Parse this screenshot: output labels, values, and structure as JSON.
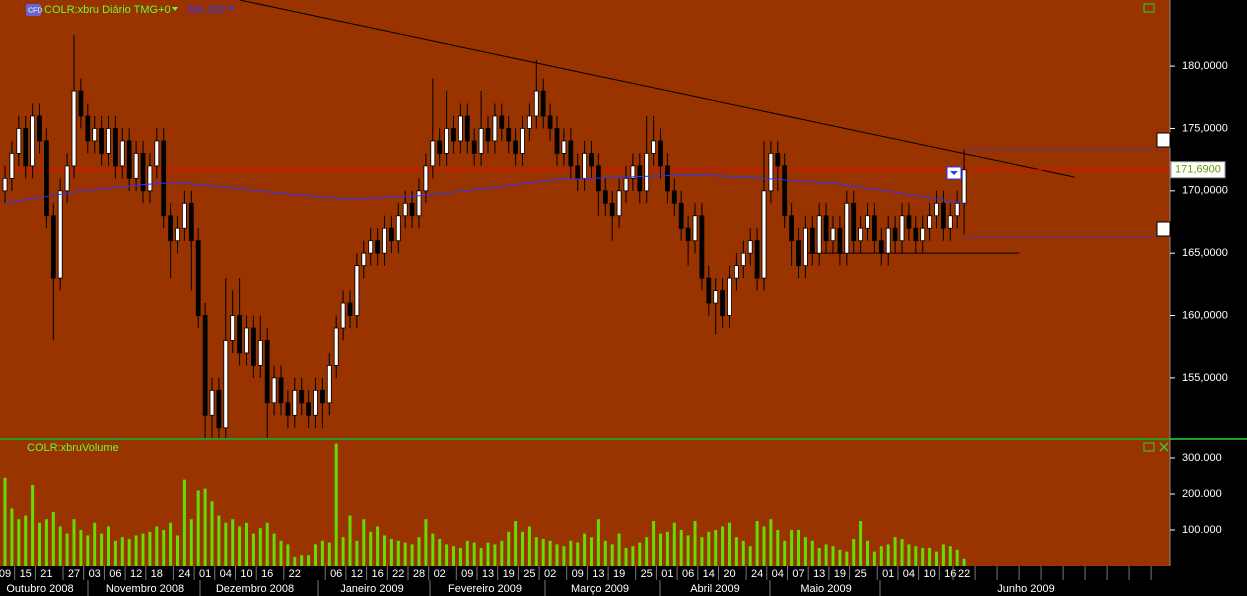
{
  "chart_data": [
    {
      "type": "candlestick",
      "title": "COLR:xbru Diário TMG+0",
      "categories": [
        "09",
        null,
        null,
        "15",
        null,
        null,
        "21",
        null,
        null,
        null,
        "27",
        null,
        null,
        "03",
        null,
        null,
        "06",
        null,
        null,
        "12",
        null,
        null,
        "18",
        null,
        null,
        null,
        "24",
        null,
        null,
        "01",
        null,
        null,
        "04",
        null,
        null,
        "10",
        null,
        null,
        "16",
        null,
        null,
        null,
        "22",
        null,
        null,
        null,
        null,
        null,
        "06",
        null,
        null,
        "12",
        null,
        null,
        "16",
        null,
        null,
        "22",
        null,
        null,
        "28",
        null,
        null,
        "02",
        null,
        null,
        null,
        "09",
        null,
        null,
        "13",
        null,
        null,
        "19",
        null,
        null,
        "25",
        null,
        null,
        "02",
        null,
        null,
        null,
        "09",
        null,
        null,
        "13",
        null,
        null,
        "19",
        null,
        null,
        null,
        "25",
        null,
        null,
        "01",
        null,
        null,
        "06",
        null,
        null,
        "14",
        null,
        null,
        "20",
        null,
        null,
        null,
        "24",
        null,
        null,
        "04",
        null,
        null,
        "07",
        null,
        null,
        "13",
        null,
        null,
        "19",
        null,
        null,
        "25",
        null,
        null,
        null,
        "01",
        null,
        null,
        "04",
        null,
        null,
        "10",
        null,
        null,
        "16",
        null,
        "22"
      ],
      "open": [
        170,
        171,
        173,
        175,
        172,
        176,
        174,
        168,
        163,
        170,
        172,
        178,
        176,
        174,
        175,
        173,
        175,
        172,
        174,
        171,
        173,
        170,
        172,
        174,
        168,
        166,
        167,
        169,
        166,
        160,
        152,
        154,
        151,
        158,
        160,
        157,
        159,
        156,
        158,
        153,
        155,
        153,
        152,
        154,
        153,
        152,
        154,
        153,
        156,
        159,
        161,
        160,
        164,
        165,
        166,
        165,
        167,
        166,
        168,
        169,
        168,
        170,
        172,
        174,
        173,
        175,
        174,
        176,
        174,
        173,
        175,
        174,
        176,
        175,
        174,
        173,
        175,
        176,
        178,
        176,
        175,
        173,
        174,
        172,
        171,
        173,
        172,
        170,
        169,
        168,
        170,
        171,
        172,
        170,
        173,
        174,
        172,
        170,
        169,
        167,
        166,
        168,
        163,
        161,
        162,
        160,
        163,
        164,
        165,
        166,
        163,
        170,
        173,
        172,
        168,
        166,
        164,
        167,
        165,
        168,
        166,
        167,
        165,
        169,
        166,
        167,
        168,
        166,
        165,
        167,
        166,
        168,
        167,
        166,
        167,
        168,
        169,
        167,
        168,
        169
      ],
      "high": [
        172,
        174,
        176,
        176,
        177,
        177,
        175,
        169,
        171,
        173,
        182.5,
        179,
        177,
        176,
        176,
        176,
        176,
        175,
        175,
        174,
        174,
        173,
        175,
        175,
        169,
        168,
        170,
        170,
        167,
        161,
        155,
        155,
        163,
        162,
        163,
        160,
        160,
        160,
        159,
        156,
        156,
        154,
        155,
        155,
        154,
        155,
        155,
        157,
        160,
        162,
        162,
        165,
        166,
        167,
        167,
        168,
        168,
        169,
        170,
        170,
        171,
        173,
        179,
        175,
        178,
        176,
        177,
        177,
        175,
        178,
        176,
        177,
        177,
        176,
        175,
        176,
        177,
        180.5,
        179,
        177,
        176,
        175,
        175,
        173,
        174,
        174,
        173,
        171,
        170,
        171,
        172,
        173,
        173,
        176,
        176,
        175,
        173,
        171,
        170,
        168,
        169,
        169,
        164,
        163,
        163,
        164,
        165,
        166,
        167,
        167,
        174,
        174,
        174,
        173,
        169,
        167,
        168,
        168,
        169,
        169,
        168,
        168,
        170,
        170,
        168,
        169,
        169,
        167,
        168,
        168,
        169,
        169,
        168,
        168,
        169,
        170,
        170,
        169,
        170,
        173.3
      ],
      "low": [
        169,
        170,
        172,
        171,
        171,
        173,
        167,
        158,
        162,
        169,
        171,
        175,
        173,
        173,
        172,
        172,
        171,
        171,
        170,
        170,
        169,
        169,
        171,
        167,
        163,
        165,
        166,
        162,
        159,
        150,
        150,
        150,
        150,
        157,
        156,
        156,
        155,
        155,
        150,
        152,
        152,
        151,
        151,
        152,
        151,
        151,
        151,
        152,
        155,
        158,
        159,
        159,
        163,
        164,
        164,
        164,
        165,
        165,
        167,
        167,
        167,
        169,
        171,
        172,
        172,
        173,
        173,
        173,
        172,
        172,
        173,
        173,
        174,
        173,
        172,
        172,
        174,
        175,
        175,
        174,
        172,
        172,
        171,
        170,
        170,
        171,
        168,
        168,
        166,
        167,
        169,
        170,
        169,
        169,
        172,
        171,
        169,
        168,
        166,
        164,
        165,
        162,
        160,
        158.5,
        159,
        159,
        162,
        163,
        164,
        162,
        162,
        169,
        170,
        167,
        164,
        163,
        163,
        164,
        164,
        165,
        165,
        164,
        164,
        165,
        165,
        166,
        165,
        164,
        164,
        165,
        165,
        166,
        165,
        165,
        166,
        167,
        166,
        166,
        167,
        166.5
      ],
      "close": [
        171,
        173,
        175,
        172,
        176,
        174,
        168,
        163,
        170,
        172,
        178,
        176,
        174,
        175,
        173,
        175,
        172,
        174,
        171,
        173,
        170,
        172,
        174,
        168,
        166,
        167,
        169,
        166,
        160,
        152,
        154,
        151,
        158,
        160,
        157,
        159,
        156,
        158,
        153,
        155,
        153,
        152,
        154,
        153,
        152,
        154,
        153,
        156,
        159,
        161,
        160,
        164,
        165,
        166,
        165,
        167,
        166,
        168,
        169,
        168,
        170,
        172,
        174,
        173,
        175,
        174,
        176,
        174,
        173,
        175,
        174,
        176,
        175,
        174,
        173,
        175,
        176,
        178,
        176,
        175,
        173,
        174,
        172,
        171,
        173,
        172,
        170,
        169,
        168,
        170,
        171,
        172,
        170,
        173,
        174,
        172,
        170,
        169,
        167,
        166,
        168,
        163,
        161,
        162,
        160,
        163,
        164,
        165,
        166,
        163,
        170,
        173,
        172,
        168,
        166,
        164,
        167,
        165,
        168,
        166,
        167,
        165,
        169,
        166,
        167,
        168,
        166,
        165,
        167,
        166,
        168,
        167,
        166,
        167,
        168,
        169,
        167,
        168,
        169,
        171.69
      ],
      "up_color": "#ffffff",
      "down_color": "#000000",
      "wick_color": "#000000",
      "ylim": [
        150.18,
        185.3
      ],
      "yticks": [
        {
          "value": 155,
          "label": "155,0000"
        },
        {
          "value": 160,
          "label": "160,0000"
        },
        {
          "value": 165,
          "label": "165,0000"
        },
        {
          "value": 170,
          "label": "170,0000"
        },
        {
          "value": 175,
          "label": "175,0000"
        },
        {
          "value": 180,
          "label": "180,0000"
        }
      ],
      "last_price": {
        "value": 171.69,
        "label": "171,6900"
      },
      "moving_average": {
        "name": "MA 200",
        "color": "#3333ff",
        "x": [
          0,
          10,
          20,
          25,
          30,
          40,
          50,
          60,
          70,
          80,
          90,
          100,
          110,
          120,
          130,
          139
        ],
        "values": [
          169.0,
          169.9,
          170.5,
          170.7,
          170.4,
          169.8,
          169.3,
          169.6,
          170.2,
          170.9,
          171.1,
          171.3,
          171.0,
          170.6,
          169.8,
          169.0
        ]
      },
      "trendline": {
        "x": [
          34,
          155
        ],
        "values": [
          185.3,
          171.1
        ]
      },
      "support_line": {
        "x": [
          116,
          147
        ],
        "values": [
          165,
          165
        ]
      },
      "range_lines": {
        "x": [
          139,
          167
        ],
        "values": [
          173.3,
          166.3
        ]
      }
    },
    {
      "type": "bar",
      "title": "COLR:xbruVolume",
      "color": "#66dd00",
      "values": [
        245000,
        160000,
        130000,
        140000,
        225000,
        120000,
        130000,
        150000,
        110000,
        90000,
        130000,
        100000,
        85000,
        120000,
        90000,
        110000,
        70000,
        80000,
        75000,
        85000,
        90000,
        95000,
        110000,
        100000,
        120000,
        85000,
        240000,
        130000,
        210000,
        215000,
        180000,
        140000,
        120000,
        130000,
        110000,
        120000,
        90000,
        105000,
        120000,
        90000,
        70000,
        60000,
        25000,
        30000,
        30000,
        60000,
        70000,
        65000,
        340000,
        80000,
        140000,
        70000,
        130000,
        95000,
        110000,
        85000,
        75000,
        70000,
        65000,
        60000,
        80000,
        130000,
        90000,
        75000,
        60000,
        55000,
        50000,
        70000,
        65000,
        50000,
        65000,
        60000,
        70000,
        95000,
        125000,
        95000,
        110000,
        80000,
        75000,
        70000,
        60000,
        55000,
        70000,
        65000,
        90000,
        80000,
        130000,
        70000,
        60000,
        90000,
        50000,
        55000,
        65000,
        80000,
        125000,
        90000,
        95000,
        120000,
        100000,
        85000,
        125000,
        80000,
        95000,
        100000,
        110000,
        120000,
        80000,
        70000,
        55000,
        125000,
        110000,
        130000,
        100000,
        70000,
        100000,
        100000,
        80000,
        70000,
        50000,
        60000,
        55000,
        45000,
        40000,
        75000,
        125000,
        70000,
        40000,
        55000,
        60000,
        80000,
        75000,
        60000,
        55000,
        50000,
        50000,
        40000,
        60000,
        55000,
        45000,
        20000
      ],
      "ylim": [
        0,
        350000
      ],
      "yticks": [
        {
          "value": 100000,
          "label": "100.000"
        },
        {
          "value": 200000,
          "label": "200.000"
        },
        {
          "value": 300000,
          "label": "300.000"
        }
      ]
    }
  ],
  "months": [
    "Outubro 2008",
    "Novembro 2008",
    "Dezembro 2008",
    "Janeiro 2009",
    "Fevereiro 2009",
    "Março 2009",
    "Abril 2009",
    "Maio 2009",
    "Junho 2009"
  ]
}
